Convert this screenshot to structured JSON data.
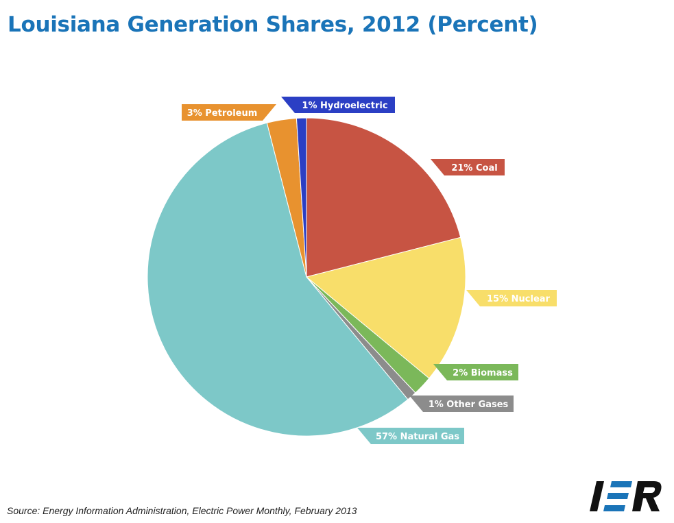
{
  "chart_title": "Louisiana Generation Shares, 2012 (Percent)",
  "source": "Source: Energy Information Administration, Electric Power Monthly, February 2013",
  "logo": {
    "text": "IER",
    "icon": "ier-logo-icon",
    "colors": {
      "letters": "#111111",
      "accent": "#1a74b8"
    }
  },
  "chart_data": {
    "type": "pie",
    "title": "Louisiana Generation Shares, 2012 (Percent)",
    "slices": [
      {
        "name": "Coal",
        "value": 21,
        "label": "21% Coal",
        "color": "#c75443"
      },
      {
        "name": "Nuclear",
        "value": 15,
        "label": "15% Nuclear",
        "color": "#f8de6a"
      },
      {
        "name": "Biomass",
        "value": 2,
        "label": "2% Biomass",
        "color": "#7bb85a"
      },
      {
        "name": "Other Gases",
        "value": 1,
        "label": "1% Other Gases",
        "color": "#8c8c8c"
      },
      {
        "name": "Natural Gas",
        "value": 57,
        "label": "57% Natural Gas",
        "color": "#7dc8c8"
      },
      {
        "name": "Petroleum",
        "value": 3,
        "label": "3% Petroleum",
        "color": "#e8922f"
      },
      {
        "name": "Hydroelectric",
        "value": 1,
        "label": "1% Hydroelectric",
        "color": "#2b3fc4"
      }
    ]
  }
}
